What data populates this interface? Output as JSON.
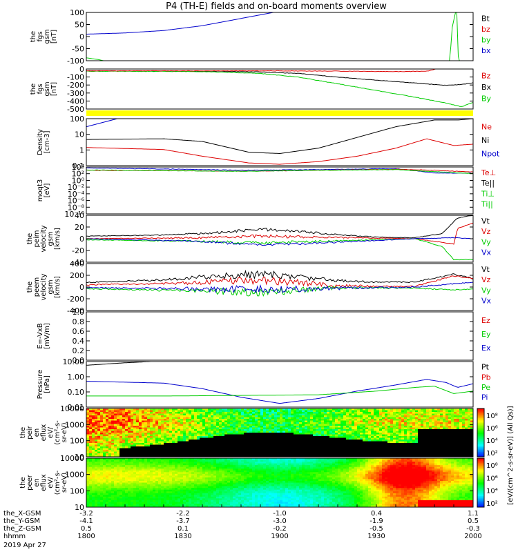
{
  "title": "P4 (TH-E) fields and on-board moments overview",
  "colors": {
    "black": "#000000",
    "red": "#dd0000",
    "green": "#00cc00",
    "blue": "#0000cc",
    "yellow": "#ffff00"
  },
  "chart_data": [
    {
      "type": "line",
      "id": "fgs_small",
      "ylabel": [
        "the",
        "fgs",
        "gsm",
        "[nT]"
      ],
      "yticks": [
        "100",
        "50",
        "0",
        "-50",
        "-100"
      ],
      "ylim": [
        -100,
        100
      ],
      "legend": [
        {
          "label": "Bt",
          "color": "black"
        },
        {
          "label": "bz",
          "color": "red"
        },
        {
          "label": "by",
          "color": "green"
        },
        {
          "label": "bx",
          "color": "blue"
        }
      ],
      "series": [
        {
          "name": "bx",
          "color": "blue",
          "x": [
            0,
            0.1,
            0.2,
            0.3,
            0.4,
            0.5
          ],
          "y": [
            10,
            15,
            25,
            45,
            75,
            105
          ]
        },
        {
          "name": "by",
          "color": "green",
          "x": [
            0,
            0.03,
            0.06,
            0.94,
            0.945,
            0.955,
            0.958,
            0.962,
            1
          ],
          "y": [
            -88,
            -95,
            -105,
            -105,
            30,
            105,
            105,
            -105,
            -105
          ]
        }
      ]
    },
    {
      "type": "line",
      "id": "fgs",
      "ylabel": [
        "the",
        "fgs",
        "gsm",
        "[nT]"
      ],
      "yticks": [
        "0",
        "-100",
        "-200",
        "-300",
        "-400",
        "-500"
      ],
      "ylim": [
        -520,
        20
      ],
      "legend": [
        {
          "label": "Bz",
          "color": "red"
        },
        {
          "label": "Bx",
          "color": "black"
        },
        {
          "label": "By",
          "color": "green"
        }
      ],
      "series": [
        {
          "name": "Bx",
          "color": "black",
          "x": [
            0,
            0.3,
            0.45,
            0.55,
            0.65,
            0.75,
            0.85,
            0.93,
            0.97,
            1
          ],
          "y": [
            -5,
            -8,
            -20,
            -40,
            -90,
            -130,
            -170,
            -200,
            -190,
            -165
          ]
        },
        {
          "name": "By",
          "color": "green",
          "x": [
            0,
            0.3,
            0.45,
            0.55,
            0.65,
            0.75,
            0.85,
            0.93,
            0.97,
            1
          ],
          "y": [
            -10,
            -15,
            -40,
            -90,
            -180,
            -270,
            -360,
            -440,
            -490,
            -430
          ]
        },
        {
          "name": "Bz",
          "color": "red",
          "x": [
            0,
            0.5,
            0.7,
            0.8,
            0.88,
            0.93,
            0.97,
            1
          ],
          "y": [
            -5,
            -5,
            -10,
            -15,
            -10,
            50,
            70,
            20
          ]
        }
      ]
    },
    {
      "type": "bar",
      "id": "flag",
      "color": "yellow"
    },
    {
      "type": "line",
      "id": "density",
      "scale": "log",
      "ylabel": [
        "Density",
        "[cm-3]"
      ],
      "yticks": [
        "100",
        "10",
        "1",
        "0.1"
      ],
      "ylim": [
        -1.3,
        2.2
      ],
      "legend": [
        {
          "label": "Ne",
          "color": "red"
        },
        {
          "label": "Ni",
          "color": "black"
        },
        {
          "label": "Npot",
          "color": "blue"
        }
      ],
      "series": [
        {
          "name": "Npot",
          "color": "blue",
          "x": [
            0,
            0.04,
            0.08
          ],
          "y": [
            1.6,
            1.9,
            2.2
          ]
        },
        {
          "name": "Ni",
          "color": "black",
          "x": [
            0,
            0.2,
            0.3,
            0.42,
            0.5,
            0.6,
            0.7,
            0.8,
            0.9,
            0.96,
            1
          ],
          "y": [
            0.65,
            0.7,
            0.5,
            -0.3,
            -0.4,
            0,
            0.8,
            1.6,
            2.1,
            2.1,
            2.2
          ]
        },
        {
          "name": "Ne",
          "color": "red",
          "x": [
            0,
            0.2,
            0.3,
            0.42,
            0.5,
            0.6,
            0.7,
            0.8,
            0.88,
            0.95,
            1
          ],
          "y": [
            0.05,
            -0.1,
            -0.6,
            -1.1,
            -1.2,
            -1.0,
            -0.6,
            0,
            0.7,
            0.2,
            0.3
          ]
        }
      ]
    },
    {
      "type": "line",
      "id": "moqt",
      "scale": "log",
      "ylabel": [
        "moqt3",
        "[eV]"
      ],
      "yticks": [
        "10⁴",
        "10²",
        "10⁰",
        "10⁻²",
        "10⁻⁴",
        "10⁻⁶",
        "10⁻⁸",
        "10⁻¹⁰"
      ],
      "ylim": [
        -10,
        4.3
      ],
      "legend": [
        {
          "label": "Te⊥",
          "color": "red"
        },
        {
          "label": "Te||",
          "color": "black"
        },
        {
          "label": "Ti⊥",
          "color": "green"
        },
        {
          "label": "Ti||",
          "color": "green"
        }
      ],
      "series": [
        {
          "name": "Ti",
          "color": "blue",
          "x": [
            0,
            0.2,
            0.4,
            0.6,
            0.8,
            0.85,
            0.9,
            1
          ],
          "y": [
            4,
            3.7,
            3.3,
            3.5,
            3.8,
            3.2,
            2.5,
            2.4
          ]
        },
        {
          "name": "Te",
          "color": "red",
          "x": [
            0,
            0.2,
            0.4,
            0.6,
            0.8,
            0.88,
            1
          ],
          "y": [
            3.3,
            3.2,
            3.0,
            3.3,
            3.6,
            3.4,
            2.8
          ]
        },
        {
          "name": "Ti2",
          "color": "green",
          "x": [
            0,
            0.2,
            0.4,
            0.6,
            0.8,
            0.88,
            1
          ],
          "y": [
            3.4,
            3.2,
            3.0,
            3.3,
            3.5,
            3.0,
            2.3
          ]
        }
      ]
    },
    {
      "type": "line",
      "id": "velocity_peim",
      "ylabel": [
        "the",
        "peim",
        "velocity",
        "gsm",
        "[km/s]"
      ],
      "yticks": [
        "40",
        "20",
        "0",
        "-20",
        "-40"
      ],
      "ylim": [
        -45,
        45
      ],
      "legend": [
        {
          "label": "Vt",
          "color": "black"
        },
        {
          "label": "Vz",
          "color": "red"
        },
        {
          "label": "Vy",
          "color": "green"
        },
        {
          "label": "Vx",
          "color": "blue"
        }
      ],
      "series": [
        {
          "name": "Vt",
          "color": "black",
          "x": [
            0,
            0.2,
            0.35,
            0.45,
            0.55,
            0.65,
            0.75,
            0.85,
            0.92,
            0.96,
            1
          ],
          "y": [
            5,
            7,
            12,
            18,
            14,
            8,
            3,
            2,
            10,
            40,
            45
          ]
        },
        {
          "name": "Vz",
          "color": "red",
          "x": [
            0,
            0.3,
            0.45,
            0.6,
            0.85,
            0.95,
            0.96,
            1
          ],
          "y": [
            0,
            2,
            5,
            3,
            0,
            -10,
            20,
            30
          ]
        },
        {
          "name": "Vy",
          "color": "green",
          "x": [
            0,
            0.3,
            0.45,
            0.6,
            0.85,
            0.92,
            0.95,
            1
          ],
          "y": [
            -2,
            -5,
            -8,
            -5,
            0,
            -15,
            -40,
            -40
          ]
        },
        {
          "name": "Vx",
          "color": "blue",
          "x": [
            0,
            0.3,
            0.45,
            0.6,
            0.85,
            0.95,
            1
          ],
          "y": [
            0,
            -5,
            -12,
            -8,
            0,
            2,
            0
          ]
        }
      ]
    },
    {
      "type": "line",
      "id": "velocity_peem",
      "ylabel": [
        "the",
        "peem",
        "velocity",
        "gsm",
        "[km/s]"
      ],
      "yticks": [
        "400",
        "200",
        "0",
        "-200",
        "-400"
      ],
      "ylim": [
        -420,
        420
      ],
      "legend": [
        {
          "label": "Vt",
          "color": "black"
        },
        {
          "label": "Vz",
          "color": "red"
        },
        {
          "label": "Vy",
          "color": "green"
        },
        {
          "label": "Vx",
          "color": "blue"
        }
      ],
      "series": [
        {
          "name": "Vt",
          "color": "black",
          "x": [
            0,
            0.2,
            0.35,
            0.45,
            0.55,
            0.65,
            0.75,
            0.85,
            0.95,
            1
          ],
          "y": [
            80,
            130,
            200,
            230,
            180,
            120,
            90,
            90,
            230,
            150
          ]
        },
        {
          "name": "Vz",
          "color": "red",
          "x": [
            0,
            0.2,
            0.35,
            0.45,
            0.55,
            0.65,
            0.85,
            0.95,
            1
          ],
          "y": [
            40,
            60,
            100,
            120,
            80,
            20,
            10,
            200,
            150
          ]
        },
        {
          "name": "Vy",
          "color": "green",
          "x": [
            0,
            0.2,
            0.35,
            0.45,
            0.55,
            0.65,
            0.85,
            0.95,
            1
          ],
          "y": [
            -30,
            -60,
            -80,
            -100,
            -60,
            -10,
            -20,
            -50,
            -40
          ]
        },
        {
          "name": "Vx",
          "color": "blue",
          "x": [
            0,
            0.35,
            0.55,
            0.75,
            0.85,
            0.95,
            1
          ],
          "y": [
            -10,
            -40,
            -30,
            -10,
            0,
            60,
            80
          ]
        }
      ]
    },
    {
      "type": "line",
      "id": "efield",
      "ylabel": [
        "E=-VxB",
        "[mV/m]"
      ],
      "yticks": [
        "1.0",
        "0.8",
        "0.6",
        "0.4",
        "0.2",
        "0.0"
      ],
      "ylim": [
        0,
        1
      ],
      "legend": [
        {
          "label": "Ez",
          "color": "red"
        },
        {
          "label": "Ey",
          "color": "green"
        },
        {
          "label": "Ex",
          "color": "blue"
        }
      ],
      "series": []
    },
    {
      "type": "line",
      "id": "pressure",
      "scale": "log",
      "ylabel": [
        "Pressure",
        "[nPa]"
      ],
      "yticks": [
        "10.00",
        "1.00",
        "0.10",
        "0.01"
      ],
      "ylim": [
        -2.3,
        1.4
      ],
      "legend": [
        {
          "label": "Pt",
          "color": "black"
        },
        {
          "label": "Pb",
          "color": "red"
        },
        {
          "label": "Pe",
          "color": "green"
        },
        {
          "label": "Pi",
          "color": "blue"
        }
      ],
      "series": [
        {
          "name": "Pt",
          "color": "black",
          "x": [
            0,
            0.1,
            0.2
          ],
          "y": [
            1.1,
            1.3,
            1.45
          ]
        },
        {
          "name": "Pi",
          "color": "blue",
          "x": [
            0,
            0.2,
            0.3,
            0.4,
            0.5,
            0.6,
            0.7,
            0.8,
            0.88,
            0.93,
            0.96,
            1
          ],
          "y": [
            -0.2,
            -0.35,
            -0.8,
            -1.5,
            -2.0,
            -1.6,
            -1.0,
            -0.5,
            -0.05,
            -0.3,
            -0.7,
            -0.4
          ]
        },
        {
          "name": "Pe",
          "color": "green",
          "x": [
            0,
            0.2,
            0.4,
            0.6,
            0.75,
            0.85,
            0.9,
            0.95,
            1
          ],
          "y": [
            -1.4,
            -1.4,
            -1.35,
            -1.3,
            -1.0,
            -0.7,
            -0.6,
            -1.2,
            -1.0
          ]
        }
      ]
    },
    {
      "type": "heatmap",
      "id": "peir_eflux",
      "ylabel": [
        "the",
        "peir",
        "en",
        "eflux",
        "eV/",
        "(cm²-s-",
        "sr-eV)"
      ],
      "yticks": [
        "10000",
        "1000",
        "100",
        "10"
      ]
    },
    {
      "type": "heatmap",
      "id": "peer_eflux",
      "ylabel": [
        "the",
        "peer",
        "en",
        "eflux",
        "eV/",
        "(cm²-s-",
        "sr-eV)"
      ],
      "yticks": [
        "10000",
        "1000",
        "100",
        "10"
      ]
    }
  ],
  "colorbar": {
    "label": "[eV/(cm^2-s-sr-eV)] (All Qs)]",
    "ticks_top": [
      "10⁸",
      "10⁶",
      "10⁴",
      "10²"
    ],
    "ticks_bottom": [
      "10⁸",
      "10⁶",
      "10⁴",
      "10²"
    ]
  },
  "xaxis": {
    "rows": [
      {
        "label": "the_X-GSM",
        "values": [
          "-3.2",
          "-2.2",
          "-1.0",
          "0.4",
          "1.1"
        ]
      },
      {
        "label": "the_Y-GSM",
        "values": [
          "-4.1",
          "-3.7",
          "-3.0",
          "-1.9",
          "0.5"
        ]
      },
      {
        "label": "the_Z-GSM",
        "values": [
          "0.5",
          "0.1",
          "-0.2",
          "-0.5",
          "-0.3"
        ]
      },
      {
        "label": "hhmm",
        "values": [
          "1800",
          "1830",
          "1900",
          "1930",
          "2000"
        ]
      }
    ],
    "date": "2019 Apr 27"
  }
}
